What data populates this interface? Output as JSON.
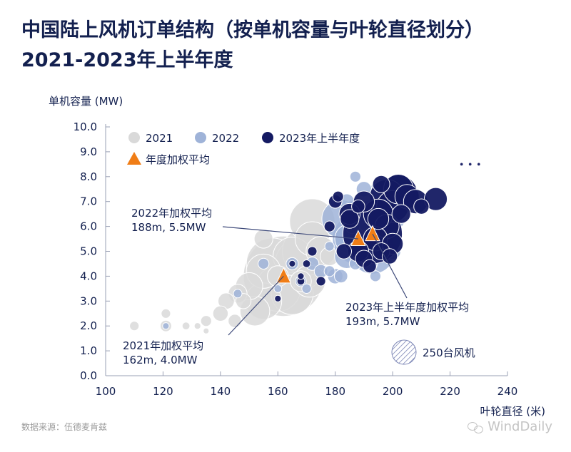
{
  "title_line1": "中国陆上风机订单结构（按单机容量与叶轮直径划分）",
  "title_line2": "2021-2023年上半年度",
  "source": "数据来源：伍德麦肯兹",
  "watermark": "WindDaily",
  "chart_data": {
    "type": "scatter",
    "ylabel": "单机容量 (MW)",
    "xlabel": "叶轮直径 (米)",
    "xlim": [
      100,
      240
    ],
    "ylim": [
      0,
      10
    ],
    "x_ticks": [
      "100",
      "120",
      "140",
      "160",
      "180",
      "200",
      "220",
      "240"
    ],
    "y_ticks": [
      "0.0",
      "1.0",
      "2.0",
      "3.0",
      "4.0",
      "5.0",
      "6.0",
      "7.0",
      "8.0",
      "9.0",
      "10.0"
    ],
    "bubble_size_unit": "turbines",
    "legend_placement": "top-left",
    "colors": {
      "2021": "#d9d9d9",
      "2022": "#9fb3d8",
      "2023": "#141a62",
      "avg": "#f07d16",
      "hatch": "#7d87b6"
    },
    "legend": [
      {
        "key": "2021",
        "label": "2021"
      },
      {
        "key": "2022",
        "label": "2022"
      },
      {
        "key": "2023",
        "label": "2023年上半年度"
      },
      {
        "key": "avg",
        "label": "年度加权平均"
      }
    ],
    "size_legend": {
      "label": "250台风机",
      "turbines": 250
    },
    "series": [
      {
        "key": "2021",
        "name": "2021",
        "points": [
          [
            110,
            2.0,
            30
          ],
          [
            121,
            2.5,
            30
          ],
          [
            121,
            2.0,
            45
          ],
          [
            128,
            2.0,
            20
          ],
          [
            132,
            2.0,
            15
          ],
          [
            135,
            2.2,
            40
          ],
          [
            140,
            2.5,
            80
          ],
          [
            142,
            3.0,
            90
          ],
          [
            145,
            2.2,
            60
          ],
          [
            146,
            3.3,
            120
          ],
          [
            150,
            3.6,
            250
          ],
          [
            152,
            2.6,
            300
          ],
          [
            155,
            3.0,
            450
          ],
          [
            155,
            4.2,
            400
          ],
          [
            158,
            4.5,
            900
          ],
          [
            160,
            3.5,
            700
          ],
          [
            162,
            4.0,
            2200
          ],
          [
            165,
            4.8,
            500
          ],
          [
            165,
            3.3,
            600
          ],
          [
            168,
            4.5,
            900
          ],
          [
            170,
            5.0,
            800
          ],
          [
            172,
            5.5,
            400
          ],
          [
            175,
            5.0,
            300
          ],
          [
            171,
            3.8,
            350
          ],
          [
            168,
            3.8,
            150
          ],
          [
            155,
            5.5,
            120
          ],
          [
            172,
            6.2,
            700
          ],
          [
            182,
            5.5,
            60
          ],
          [
            178,
            4.8,
            120
          ],
          [
            160,
            4.0,
            150
          ],
          [
            148,
            3.0,
            80
          ],
          [
            135,
            1.8,
            10
          ]
        ]
      },
      {
        "key": "2022",
        "name": "2022",
        "points": [
          [
            121,
            2.0,
            15
          ],
          [
            146,
            3.3,
            25
          ],
          [
            155,
            4.5,
            40
          ],
          [
            165,
            4.5,
            50
          ],
          [
            168,
            3.8,
            40
          ],
          [
            172,
            4.5,
            60
          ],
          [
            175,
            4.2,
            60
          ],
          [
            178,
            4.2,
            40
          ],
          [
            180,
            4.0,
            80
          ],
          [
            182,
            6.3,
            500
          ],
          [
            184,
            4.8,
            200
          ],
          [
            185,
            5.5,
            300
          ],
          [
            188,
            5.5,
            900
          ],
          [
            190,
            6.0,
            400
          ],
          [
            193,
            5.0,
            700
          ],
          [
            195,
            5.2,
            350
          ],
          [
            196,
            6.2,
            220
          ],
          [
            200,
            6.3,
            200
          ],
          [
            196,
            7.5,
            150
          ],
          [
            190,
            7.5,
            80
          ],
          [
            187,
            8.0,
            40
          ],
          [
            184,
            7.0,
            80
          ],
          [
            186,
            6.7,
            100
          ],
          [
            192,
            6.7,
            120
          ],
          [
            200,
            5.0,
            90
          ],
          [
            182,
            4.0,
            60
          ],
          [
            187,
            4.5,
            50
          ],
          [
            180,
            7.0,
            60
          ],
          [
            188,
            5.0,
            120
          ],
          [
            192,
            4.5,
            80
          ],
          [
            186,
            6.0,
            70
          ],
          [
            198,
            6.5,
            80
          ],
          [
            194,
            4.0,
            40
          ],
          [
            178,
            5.2,
            30
          ],
          [
            170,
            3.5,
            30
          ],
          [
            160,
            3.5,
            20
          ]
        ]
      },
      {
        "key": "2023",
        "name": "2023年上半年度",
        "points": [
          [
            190,
            7.0,
            150
          ],
          [
            195,
            6.5,
            300
          ],
          [
            198,
            7.2,
            400
          ],
          [
            200,
            6.8,
            350
          ],
          [
            202,
            7.3,
            500
          ],
          [
            205,
            7.2,
            200
          ],
          [
            208,
            7.0,
            200
          ],
          [
            215,
            7.1,
            180
          ],
          [
            202,
            7.5,
            300
          ],
          [
            198,
            6.0,
            200
          ],
          [
            185,
            6.5,
            150
          ],
          [
            193,
            5.7,
            1200
          ],
          [
            188,
            5.0,
            150
          ],
          [
            190,
            4.7,
            100
          ],
          [
            194,
            5.5,
            200
          ],
          [
            195,
            6.3,
            150
          ],
          [
            185,
            6.3,
            120
          ],
          [
            183,
            5.0,
            80
          ],
          [
            180,
            7.0,
            60
          ],
          [
            172,
            5.0,
            30
          ],
          [
            175,
            3.8,
            30
          ],
          [
            168,
            3.8,
            20
          ],
          [
            165,
            4.5,
            15
          ],
          [
            168,
            4.0,
            15
          ],
          [
            160,
            3.1,
            15
          ],
          [
            181,
            7.2,
            40
          ],
          [
            200,
            5.3,
            150
          ],
          [
            196,
            5.0,
            100
          ],
          [
            196,
            7.7,
            100
          ],
          [
            203,
            6.5,
            120
          ],
          [
            210,
            6.8,
            80
          ],
          [
            188,
            6.8,
            60
          ],
          [
            170,
            4.5,
            20
          ],
          [
            178,
            6.0,
            40
          ],
          [
            192,
            4.4,
            60
          ],
          [
            199,
            4.8,
            80
          ],
          [
            224,
            8.5,
            3
          ],
          [
            227,
            8.5,
            3
          ],
          [
            230,
            8.5,
            3
          ]
        ]
      }
    ],
    "weighted_averages": [
      {
        "year": "2021",
        "x": 162,
        "y": 4.0
      },
      {
        "year": "2022",
        "x": 188,
        "y": 5.5
      },
      {
        "year": "2023",
        "x": 193,
        "y": 5.7
      }
    ],
    "annotations": [
      {
        "line1": "2022年加权平均",
        "line2": "188m, 5.5MW",
        "x": 188,
        "y": 5.5
      },
      {
        "line1": "2021年加权平均",
        "line2": "162m, 4.0MW",
        "x": 162,
        "y": 4.0
      },
      {
        "line1": "2023年上半年度加权平均",
        "line2": "193m, 5.7MW",
        "x": 193,
        "y": 5.7
      }
    ]
  }
}
